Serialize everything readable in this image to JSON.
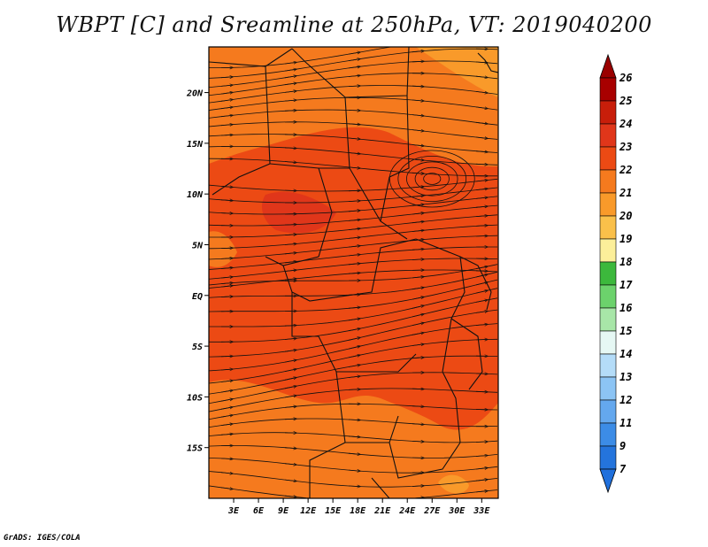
{
  "title": "WBPT [C] and Sreamline at 250hPa, VT: 2019040200",
  "credit": "GrADS: IGES/COLA",
  "map": {
    "lon_range": [
      0,
      35
    ],
    "lat_range": [
      -20,
      24.5
    ],
    "lat_ticks": [
      {
        "value": 20,
        "label": "20N"
      },
      {
        "value": 15,
        "label": "15N"
      },
      {
        "value": 10,
        "label": "10N"
      },
      {
        "value": 5,
        "label": "5N"
      },
      {
        "value": 0,
        "label": "EQ"
      },
      {
        "value": -5,
        "label": "5S"
      },
      {
        "value": -10,
        "label": "10S"
      },
      {
        "value": -15,
        "label": "15S"
      }
    ],
    "lon_ticks": [
      {
        "value": 3,
        "label": "3E"
      },
      {
        "value": 6,
        "label": "6E"
      },
      {
        "value": 9,
        "label": "9E"
      },
      {
        "value": 12,
        "label": "12E"
      },
      {
        "value": 15,
        "label": "15E"
      },
      {
        "value": 18,
        "label": "18E"
      },
      {
        "value": 21,
        "label": "21E"
      },
      {
        "value": 24,
        "label": "24E"
      },
      {
        "value": 27,
        "label": "27E"
      },
      {
        "value": 30,
        "label": "30E"
      },
      {
        "value": 33,
        "label": "33E"
      }
    ],
    "background_color": "#ec4a14",
    "field_colors": {
      "c22": "#f57a1e",
      "c21": "#f99a2a",
      "c24": "#e0361a"
    }
  },
  "colorbar": {
    "levels": [
      "26",
      "25",
      "24",
      "23",
      "22",
      "21",
      "20",
      "19",
      "18",
      "17",
      "16",
      "15",
      "14",
      "13",
      "12",
      "11",
      "9",
      "7"
    ],
    "colors": [
      "#a80000",
      "#c81e0a",
      "#e0361a",
      "#ec4a14",
      "#f57a1e",
      "#f99a2a",
      "#fac04a",
      "#fcef9a",
      "#3cb83c",
      "#6cd26c",
      "#a8e6a8",
      "#e6f8f4",
      "#b4dcf8",
      "#8cc4f4",
      "#64a8ee",
      "#3c8ce6",
      "#2474dc"
    ],
    "top_arrow_color": "#9a0000",
    "bottom_arrow_color": "#2070dc"
  }
}
